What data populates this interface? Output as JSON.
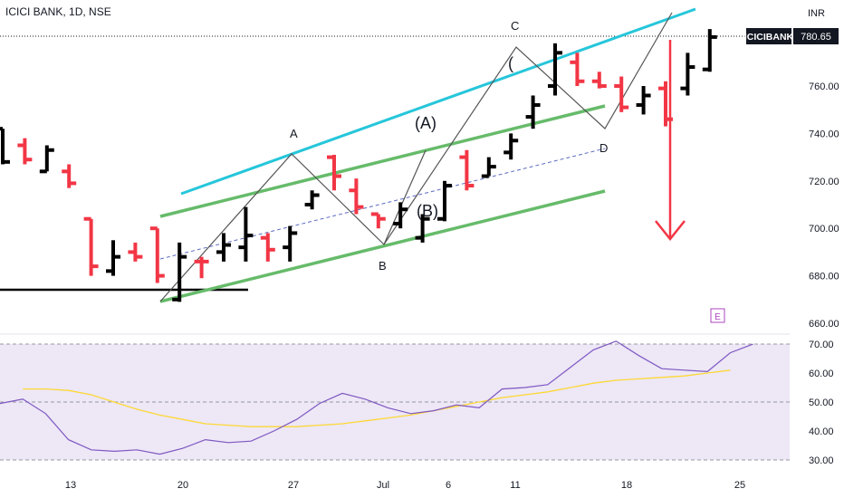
{
  "header": {
    "symbol_line": "ICICI BANK, 1D, NSE"
  },
  "price_axis": {
    "currency": "INR",
    "ticks": [
      "760.00",
      "740.00",
      "720.00",
      "700.00",
      "680.00",
      "660.00"
    ]
  },
  "last_price": {
    "symbol": "ICICIBANK",
    "value": "780.65"
  },
  "rsi_axis": {
    "ticks": [
      "70.00",
      "60.00",
      "50.00",
      "40.00",
      "30.00"
    ]
  },
  "time_axis": {
    "ticks": [
      "13",
      "20",
      "27",
      "Jul",
      "6",
      "11",
      "18",
      "25"
    ]
  },
  "annotations": {
    "A": "A",
    "B": "B",
    "C": "C",
    "D": "D",
    "paren_A": "(A)",
    "paren_B": "(B)",
    "paren_C": "(",
    "E_badge": "E"
  },
  "colors": {
    "up": "#000000",
    "down": "#f23645",
    "upper_channel": "#26c6da",
    "inner_channel": "#66bb6a",
    "rsi_line": "#7e57c2",
    "rsi_ma": "#fdd835",
    "rsi_band": "#ede7f6",
    "arrow": "#f23645",
    "badge": "#ab47bc"
  },
  "chart_data": {
    "type": "ohlc",
    "price_ylim": [
      660,
      785
    ],
    "last_price": 780.65,
    "bars": [
      {
        "d": "u",
        "o": 742,
        "h": 742,
        "l": 727,
        "c": 728
      },
      {
        "d": "d",
        "o": 735,
        "h": 738,
        "l": 727,
        "c": 729
      },
      {
        "d": "u",
        "o": 724,
        "h": 735,
        "l": 724,
        "c": 733
      },
      {
        "d": "d",
        "o": 724,
        "h": 727,
        "l": 717,
        "c": 719
      },
      {
        "d": "d",
        "o": 704,
        "h": 704,
        "l": 680,
        "c": 684
      },
      {
        "d": "u",
        "o": 682,
        "h": 695,
        "l": 680,
        "c": 688
      },
      {
        "d": "d",
        "o": 690,
        "h": 694,
        "l": 686,
        "c": 688
      },
      {
        "d": "d",
        "o": 700,
        "h": 700,
        "l": 677,
        "c": 680
      },
      {
        "d": "u",
        "o": 670,
        "h": 694,
        "l": 669,
        "c": 688
      },
      {
        "d": "d",
        "o": 686,
        "h": 688,
        "l": 679,
        "c": 686
      },
      {
        "d": "u",
        "o": 690,
        "h": 698,
        "l": 686,
        "c": 693
      },
      {
        "d": "u",
        "o": 692,
        "h": 709,
        "l": 686,
        "c": 697
      },
      {
        "d": "d",
        "o": 696,
        "h": 698,
        "l": 686,
        "c": 691
      },
      {
        "d": "u",
        "o": 692,
        "h": 701,
        "l": 686,
        "c": 698
      },
      {
        "d": "u",
        "o": 710,
        "h": 716,
        "l": 708,
        "c": 714
      },
      {
        "d": "d",
        "o": 730,
        "h": 731,
        "l": 716,
        "c": 722
      },
      {
        "d": "d",
        "o": 716,
        "h": 721,
        "l": 706,
        "c": 709
      },
      {
        "d": "d",
        "o": 706,
        "h": 706,
        "l": 700,
        "c": 704
      },
      {
        "d": "u",
        "o": 702,
        "h": 711,
        "l": 700,
        "c": 708
      },
      {
        "d": "u",
        "o": 696,
        "h": 706,
        "l": 694,
        "c": 704
      },
      {
        "d": "u",
        "o": 704,
        "h": 720,
        "l": 703,
        "c": 718
      },
      {
        "d": "d",
        "o": 730,
        "h": 733,
        "l": 716,
        "c": 718
      },
      {
        "d": "u",
        "o": 722,
        "h": 730,
        "l": 722,
        "c": 726
      },
      {
        "d": "u",
        "o": 732,
        "h": 740,
        "l": 729,
        "c": 737
      },
      {
        "d": "u",
        "o": 747,
        "h": 756,
        "l": 742,
        "c": 752
      },
      {
        "d": "u",
        "o": 760,
        "h": 778,
        "l": 756,
        "c": 774
      },
      {
        "d": "d",
        "o": 770,
        "h": 774,
        "l": 760,
        "c": 762
      },
      {
        "d": "d",
        "o": 762,
        "h": 766,
        "l": 759,
        "c": 760
      },
      {
        "d": "d",
        "o": 760,
        "h": 764,
        "l": 749,
        "c": 751
      },
      {
        "d": "u",
        "o": 752,
        "h": 760,
        "l": 748,
        "c": 756
      },
      {
        "d": "d",
        "o": 759,
        "h": 762,
        "l": 743,
        "c": 746
      },
      {
        "d": "u",
        "o": 759,
        "h": 774,
        "l": 756,
        "c": 768
      },
      {
        "d": "u",
        "o": 767,
        "h": 784,
        "l": 766,
        "c": 780.65
      }
    ],
    "rsi": {
      "ylim": [
        28,
        72
      ],
      "values": [
        49.5,
        51,
        46,
        37,
        33.5,
        33,
        33.5,
        32,
        34,
        37,
        36,
        36.5,
        40,
        44,
        49.5,
        53,
        51,
        48,
        46,
        47,
        49,
        48,
        54.5,
        55,
        56,
        62,
        68,
        71,
        66,
        61.5,
        61,
        60.5,
        67,
        70
      ],
      "ma": [
        54.5,
        54.5,
        54,
        52.5,
        50,
        47.5,
        45.5,
        44,
        42.5,
        42,
        41.5,
        41.5,
        41.5,
        42,
        42.5,
        43.5,
        44.5,
        45.5,
        47,
        48.5,
        50,
        51.5,
        52.5,
        53.5,
        55,
        56.5,
        57.5,
        58,
        58.5,
        59,
        60,
        61
      ]
    }
  }
}
